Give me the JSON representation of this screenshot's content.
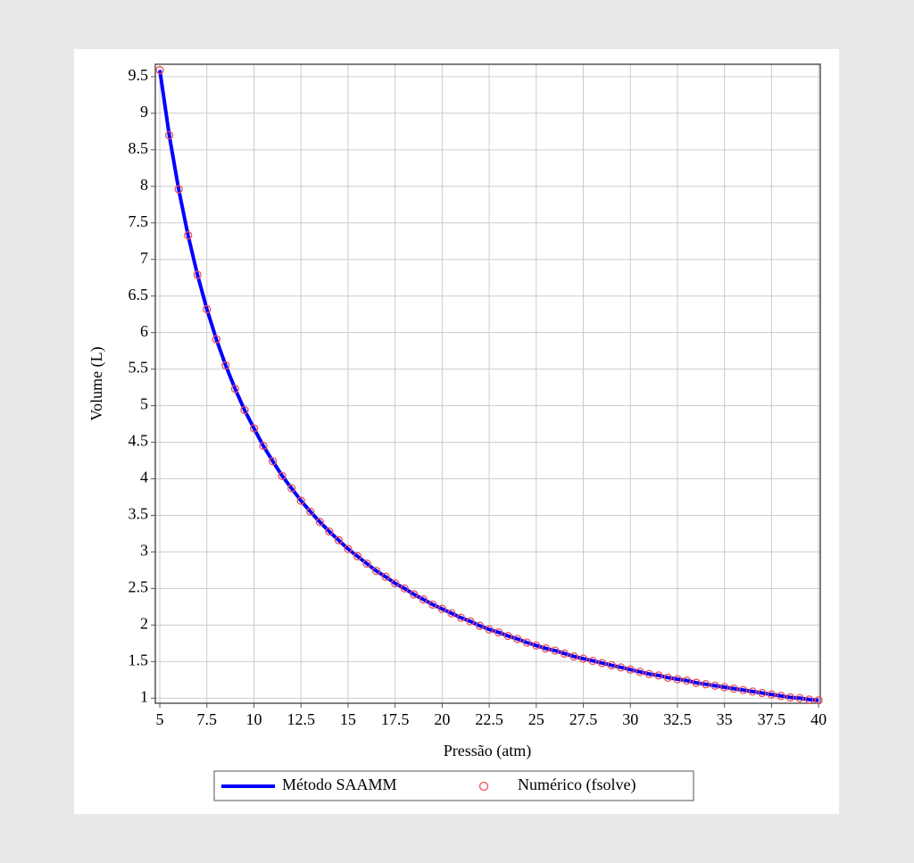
{
  "chart_data": {
    "type": "line",
    "xlabel": "Pressão (atm)",
    "ylabel": "Volume (L)",
    "x": [
      5,
      5.5,
      6,
      6.5,
      7,
      7.5,
      8,
      8.5,
      9,
      9.5,
      10,
      10.5,
      11,
      11.5,
      12,
      12.5,
      13,
      13.5,
      14,
      14.5,
      15,
      15.5,
      16,
      16.5,
      17,
      17.5,
      18,
      18.5,
      19,
      19.5,
      20,
      20.5,
      21,
      21.5,
      22,
      22.5,
      23,
      23.5,
      24,
      24.5,
      25,
      25.5,
      26,
      26.5,
      27,
      27.5,
      28,
      28.5,
      29,
      29.5,
      30,
      30.5,
      31,
      31.5,
      32,
      32.5,
      33,
      33.5,
      34,
      34.5,
      35,
      35.5,
      36,
      36.5,
      37,
      37.5,
      38,
      38.5,
      39,
      39.5,
      40
    ],
    "series": [
      {
        "name": "Método SAAMM",
        "type": "line",
        "color": "#0000ff",
        "values": [
          9.59,
          8.7,
          7.96,
          7.33,
          6.79,
          6.32,
          5.91,
          5.55,
          5.23,
          4.94,
          4.69,
          4.45,
          4.24,
          4.04,
          3.87,
          3.7,
          3.55,
          3.41,
          3.28,
          3.16,
          3.04,
          2.94,
          2.84,
          2.74,
          2.66,
          2.57,
          2.5,
          2.42,
          2.35,
          2.28,
          2.22,
          2.16,
          2.1,
          2.05,
          1.99,
          1.94,
          1.9,
          1.85,
          1.81,
          1.76,
          1.72,
          1.68,
          1.65,
          1.61,
          1.57,
          1.54,
          1.51,
          1.48,
          1.45,
          1.42,
          1.39,
          1.36,
          1.33,
          1.31,
          1.28,
          1.26,
          1.24,
          1.21,
          1.19,
          1.17,
          1.15,
          1.13,
          1.11,
          1.09,
          1.07,
          1.05,
          1.03,
          1.01,
          1.0,
          0.98,
          0.97
        ]
      },
      {
        "name": "Numérico (fsolve)",
        "type": "scatter",
        "color": "#f0505a",
        "values": [
          9.59,
          8.7,
          7.96,
          7.33,
          6.79,
          6.32,
          5.91,
          5.55,
          5.23,
          4.94,
          4.69,
          4.45,
          4.24,
          4.04,
          3.87,
          3.7,
          3.55,
          3.41,
          3.28,
          3.16,
          3.04,
          2.94,
          2.84,
          2.74,
          2.66,
          2.57,
          2.5,
          2.42,
          2.35,
          2.28,
          2.22,
          2.16,
          2.1,
          2.05,
          1.99,
          1.94,
          1.9,
          1.85,
          1.81,
          1.76,
          1.72,
          1.68,
          1.65,
          1.61,
          1.57,
          1.54,
          1.51,
          1.48,
          1.45,
          1.42,
          1.39,
          1.36,
          1.33,
          1.31,
          1.28,
          1.26,
          1.24,
          1.21,
          1.19,
          1.17,
          1.15,
          1.13,
          1.11,
          1.09,
          1.07,
          1.05,
          1.03,
          1.01,
          1.0,
          0.98,
          0.97
        ]
      }
    ],
    "xlim": [
      4.76,
      40.09
    ],
    "ylim": [
      0.93,
      9.67
    ],
    "xticks": [
      5,
      7.5,
      10,
      12.5,
      15,
      17.5,
      20,
      22.5,
      25,
      27.5,
      30,
      32.5,
      35,
      37.5,
      40
    ],
    "yticks": [
      1,
      1.5,
      2,
      2.5,
      3,
      3.5,
      4,
      4.5,
      5,
      5.5,
      6,
      6.5,
      7,
      7.5,
      8,
      8.5,
      9,
      9.5
    ],
    "grid": true
  }
}
